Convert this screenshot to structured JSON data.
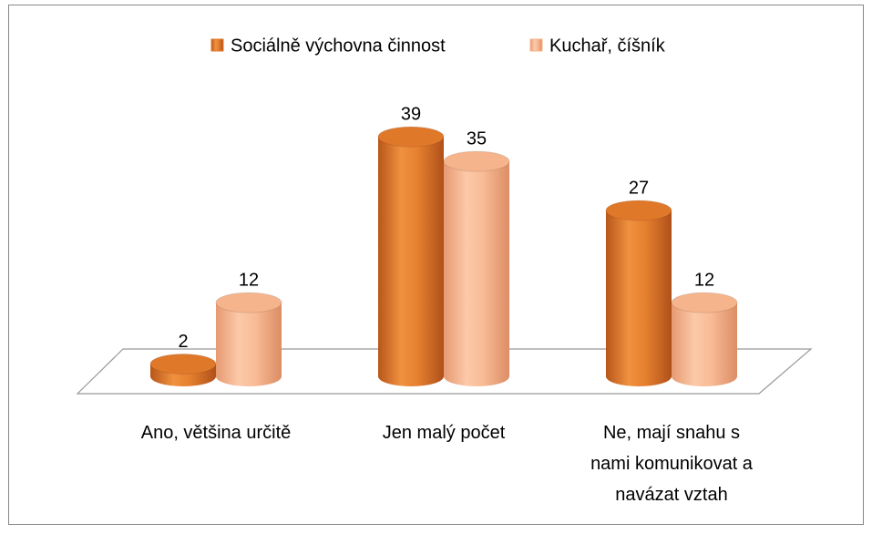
{
  "chart_data": {
    "type": "bar3d-cylinder",
    "categories": [
      "Ano, většina určitě",
      "Jen malý počet",
      "Ne, mají snahu s nami komunikovat a navázat vztah"
    ],
    "series": [
      {
        "name": "Sociálně výchovna činnost",
        "color": "#e0782a",
        "values": [
          2,
          39,
          27
        ]
      },
      {
        "name": "Kuchař, číšník",
        "color": "#f6b48c",
        "values": [
          12,
          35,
          12
        ]
      }
    ],
    "legend": "top"
  }
}
